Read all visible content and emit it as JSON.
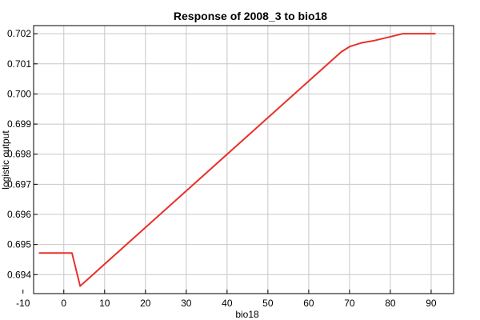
{
  "chart_data": {
    "type": "line",
    "title": "Response of 2008_3 to bio18",
    "xlabel": "bio18",
    "ylabel": "logistic output",
    "xlim": [
      -7.4,
      95.5
    ],
    "ylim": [
      0.69337,
      0.70227
    ],
    "grid": true,
    "legend": "none",
    "x_ticks": [
      -10,
      0,
      10,
      20,
      30,
      40,
      50,
      60,
      70,
      80,
      90
    ],
    "y_ticks": [
      0.694,
      0.695,
      0.696,
      0.697,
      0.698,
      0.699,
      0.7,
      0.701,
      0.702
    ],
    "y_tick_labels": [
      "0.694",
      "0.695",
      "0.696",
      "0.697",
      "0.698",
      "0.699",
      "0.700",
      "0.701",
      "0.702"
    ],
    "series": [
      {
        "color": "#e8312a",
        "x": [
          -6,
          2,
          4,
          68,
          70,
          73,
          76,
          80,
          83,
          91
        ],
        "y": [
          0.69472,
          0.69472,
          0.69362,
          0.7014,
          0.70157,
          0.7017,
          0.70177,
          0.7019,
          0.702,
          0.702
        ]
      }
    ]
  }
}
